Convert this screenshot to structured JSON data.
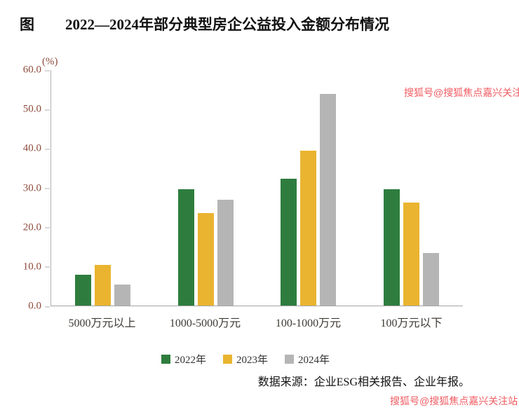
{
  "title": {
    "prefix": "图",
    "text": "2022—2024年部分典型房企公益投入金额分布情况"
  },
  "source": "数据来源：企业ESG相关报告、企业年报。",
  "watermark": {
    "top": "搜狐号@搜狐焦点嘉兴关注站",
    "bottom": "搜狐号@搜狐焦点嘉兴关注站",
    "color": "#ef4b52"
  },
  "chart_data": {
    "type": "bar",
    "title": "2022—2024年部分典型房企公益投入金额分布情况",
    "categories": [
      "5000万元以上",
      "1000-5000万元",
      "100-1000万元",
      "100万元以下"
    ],
    "series": [
      {
        "name": "2022年",
        "color": "#2e7d3e",
        "values": [
          7.9,
          29.5,
          32.3,
          29.5
        ]
      },
      {
        "name": "2023年",
        "color": "#eab430",
        "values": [
          10.3,
          23.5,
          39.3,
          26.2
        ]
      },
      {
        "name": "2024年",
        "color": "#b5b5b5",
        "values": [
          5.4,
          26.8,
          53.8,
          13.3
        ]
      }
    ],
    "xlabel": "",
    "ylabel": "(%)",
    "ylim": [
      0,
      60
    ],
    "yticks": [
      "60.0",
      "50.0",
      "40.0",
      "30.0",
      "20.0",
      "10.0",
      "0.0"
    ],
    "grid": false,
    "legend_position": "bottom"
  }
}
